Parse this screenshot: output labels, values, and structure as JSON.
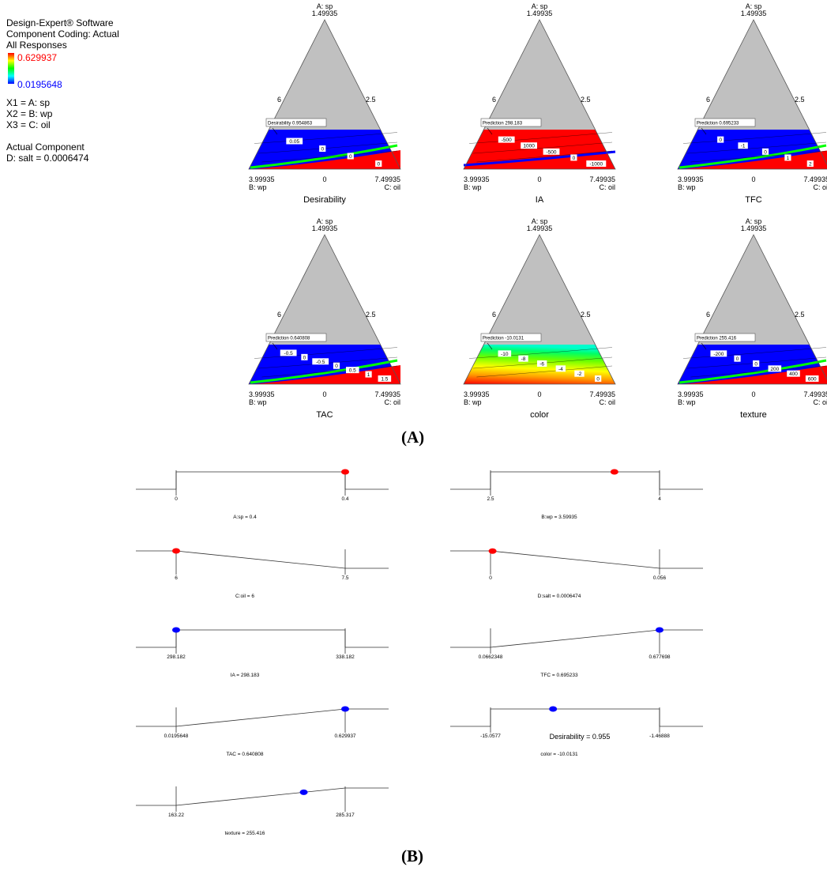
{
  "legend": {
    "line1": "Design-Expert® Software",
    "line2": "Component Coding: Actual",
    "line3": "All Responses",
    "color_high": "0.629937",
    "color_low": "0.0195648",
    "x1": "X1 = A: sp",
    "x2": "X2 = B: wp",
    "x3": "X3 = C: oil",
    "actual_title": "Actual Component",
    "actual_value": "D: salt = 0.0006474"
  },
  "colors": {
    "red": "#ff0000",
    "blue": "#0000ff",
    "gray": "#c0c0c0",
    "marker_red": "#ff0000",
    "marker_blue": "#0000ff"
  },
  "panel_labels": {
    "a": "(A)",
    "b": "(B)"
  },
  "chart_data": [
    {
      "type": "ternary-contour",
      "panel": "A",
      "vertex_top": [
        "A: sp",
        "1.49935"
      ],
      "left_axis_label": "6",
      "right_axis_label": "2.5",
      "bottom_left": [
        "3.99935",
        "B: wp"
      ],
      "bottom_mid": "0",
      "bottom_right": [
        "7.49935",
        "C: oil"
      ],
      "plots": [
        {
          "title": "Desirability",
          "flag": "Desirability  0.954863",
          "fill": "blue",
          "contours": [
            "0.05",
            "0",
            "0",
            "0"
          ]
        },
        {
          "title": "IA",
          "flag": "Prediction  298.183",
          "fill": "red",
          "contours": [
            "-500",
            "1000",
            "-500",
            "0",
            "-1000"
          ]
        },
        {
          "title": "TFC",
          "flag": "Prediction  0.695233",
          "fill": "blue",
          "contours": [
            "0",
            "-1",
            "0",
            "1",
            "2"
          ]
        },
        {
          "title": "TAC",
          "flag": "Prediction  0.640808",
          "fill": "blue",
          "contours": [
            "-0.5",
            "0",
            "-0.5",
            "0",
            "0.5",
            "1",
            "1.5"
          ]
        },
        {
          "title": "color",
          "flag": "Prediction  -10.0131",
          "fill": "gradient",
          "contours": [
            "-10",
            "-8",
            "-6",
            "-4",
            "-2",
            "0"
          ]
        },
        {
          "title": "texture",
          "flag": "Prediction  255.416",
          "fill": "blue",
          "contours": [
            "-200",
            "0",
            "0",
            "200",
            "400",
            "600"
          ]
        }
      ]
    },
    {
      "type": "desirability-ramps",
      "panel": "B",
      "ramps": [
        {
          "label": "A:sp = 0.4",
          "low": "0",
          "high": "0.4",
          "shape": "box",
          "marker": 1.0,
          "marker_color": "red"
        },
        {
          "label": "B:wp = 3.59935",
          "low": "2.5",
          "high": "4",
          "shape": "box",
          "marker": 0.733,
          "marker_color": "red"
        },
        {
          "label": "C:oil = 6",
          "low": "6",
          "high": "7.5",
          "shape": "down",
          "marker": 0.0,
          "marker_color": "red"
        },
        {
          "label": "D:salt = 0.0006474",
          "low": "0",
          "high": "0.056",
          "shape": "down",
          "marker": 0.012,
          "marker_color": "red"
        },
        {
          "label": "IA = 298.183",
          "low": "298.182",
          "high": "338.182",
          "shape": "box",
          "marker": 0.0,
          "marker_color": "blue"
        },
        {
          "label": "TFC = 0.695233",
          "low": "0.0662348",
          "high": "0.677698",
          "shape": "up",
          "marker": 1.0,
          "marker_color": "blue"
        },
        {
          "label": "TAC = 0.640808",
          "low": "0.0195648",
          "high": "0.629937",
          "shape": "up",
          "marker": 1.0,
          "marker_color": "blue"
        },
        {
          "label": "color = -10.0131",
          "low": "-15.0577",
          "high": "-1.46888",
          "shape": "box",
          "marker": 0.37,
          "marker_color": "blue"
        },
        {
          "label": "texture = 255.416",
          "low": "163.22",
          "high": "285.317",
          "shape": "up",
          "marker": 0.755,
          "marker_color": "blue"
        }
      ],
      "overall": "Desirability = 0.955"
    }
  ]
}
